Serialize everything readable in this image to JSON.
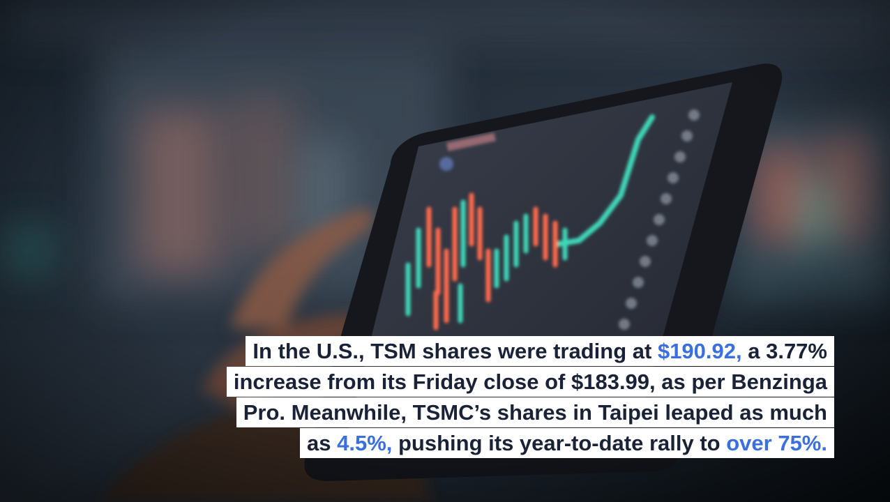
{
  "caption": {
    "line1": {
      "pre": "In the U.S., TSM shares were trading at ",
      "hl": "$190.92,",
      "post": " a 3.77%"
    },
    "line2": {
      "text": "increase from its Friday close of $183.99, as per Benzinga"
    },
    "line3": {
      "text": "Pro. Meanwhile, TSMC’s shares in Taipei leaped as much"
    },
    "line4": {
      "pre": "as ",
      "hl1": "4.5%,",
      "mid": " pushing its year-to-date rally to ",
      "hl2": "over 75%."
    }
  },
  "colors": {
    "caption_text": "#1a2238",
    "highlight": "#3a6fe0",
    "caption_bg": "#ffffff",
    "candle_up": "#3fd6b8",
    "candle_down": "#ff6a4d"
  },
  "photo": {
    "subject": "tablet-with-stock-chart-icon"
  }
}
